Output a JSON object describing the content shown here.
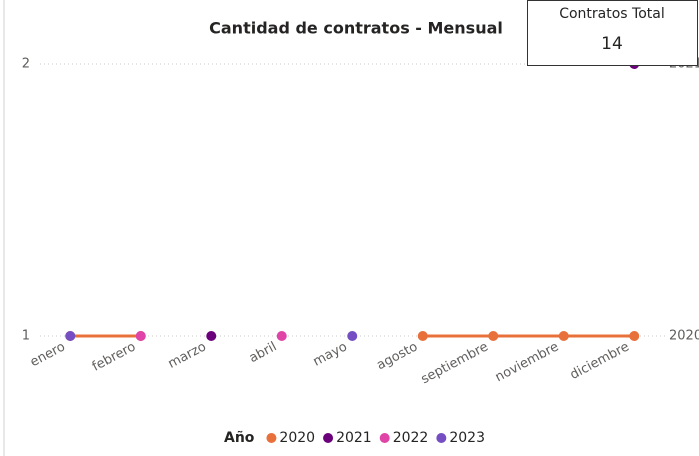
{
  "chart_data": {
    "type": "line",
    "title": "Cantidad de contratos - Mensual",
    "categories": [
      "enero",
      "febrero",
      "marzo",
      "abril",
      "mayo",
      "agosto",
      "septiembre",
      "noviembre",
      "diciembre"
    ],
    "series": [
      {
        "name": "2020",
        "color": "#e8703a",
        "values": [
          1,
          1,
          null,
          null,
          null,
          1,
          1,
          1,
          1
        ]
      },
      {
        "name": "2021",
        "color": "#6b007b",
        "values": [
          null,
          null,
          1,
          null,
          null,
          null,
          null,
          null,
          2
        ]
      },
      {
        "name": "2022",
        "color": "#e044a7",
        "values": [
          null,
          1,
          null,
          1,
          null,
          null,
          null,
          null,
          null
        ]
      },
      {
        "name": "2023",
        "color": "#744ec2",
        "values": [
          1,
          null,
          null,
          null,
          1,
          null,
          null,
          null,
          null
        ]
      }
    ],
    "ylim": [
      1,
      2
    ],
    "yticks": [
      1,
      2
    ],
    "grid": true,
    "legend": {
      "title": "Año",
      "position": "bottom"
    },
    "card": {
      "title": "Contratos Total",
      "value": 14
    }
  }
}
